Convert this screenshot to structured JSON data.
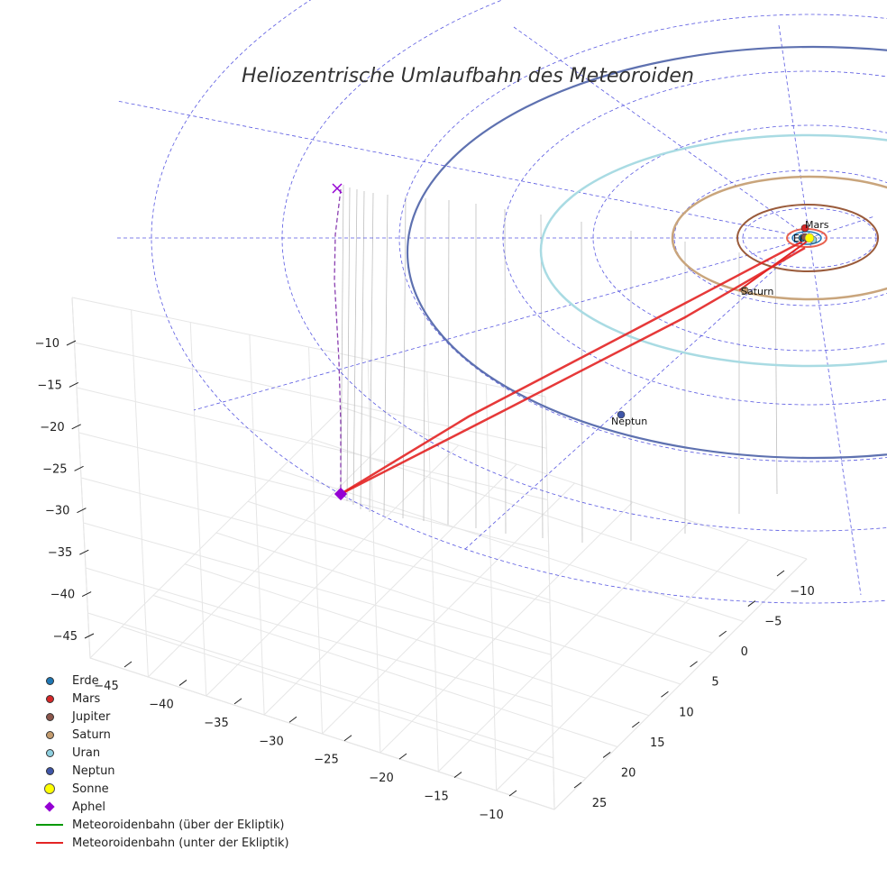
{
  "chart_data": {
    "type": "3d-orbit",
    "title": "Heliozentrische Umlaufbahn des Meteoroiden",
    "x_ticks": [
      "−45",
      "−40",
      "−35",
      "−30",
      "−25",
      "−20",
      "−15",
      "−10"
    ],
    "y_ticks": [
      "−10",
      "−5",
      "0",
      "5",
      "10",
      "15",
      "20",
      "25"
    ],
    "z_ticks": [
      "−10",
      "−15",
      "−20",
      "−25",
      "−30",
      "−35",
      "−40",
      "−45"
    ],
    "planets": [
      {
        "name": "Erde",
        "label": "Erde",
        "color": "#1f77b4",
        "orbit_color": "#1f77b4"
      },
      {
        "name": "Mars",
        "label": "Mars",
        "color": "#d62728",
        "orbit_color": "#e8614f"
      },
      {
        "name": "Jupiter",
        "label": "",
        "color": "#8c564b",
        "orbit_color": "#9a5b3b"
      },
      {
        "name": "Saturn",
        "label": "Saturn",
        "color": "#c49c6f",
        "orbit_color": "#c9a57c"
      },
      {
        "name": "Uran",
        "label": "",
        "color": "#8fd0e0",
        "orbit_color": "#a9dbe3"
      },
      {
        "name": "Neptun",
        "label": "Neptun",
        "color": "#3f56a8",
        "orbit_color": "#5e71b0"
      }
    ],
    "sun": {
      "name": "Sonne",
      "color": "#ffff00"
    },
    "aphel": {
      "name": "Aphel",
      "color": "#9400d3"
    },
    "orbit_above_color": "#009900",
    "orbit_below_color": "#e32424"
  },
  "legend": [
    {
      "label": "Erde",
      "kind": "dot",
      "color": "#1f77b4"
    },
    {
      "label": "Mars",
      "kind": "dot",
      "color": "#d62728"
    },
    {
      "label": "Jupiter",
      "kind": "dot",
      "color": "#8c564b"
    },
    {
      "label": "Saturn",
      "kind": "dot",
      "color": "#c49c6f"
    },
    {
      "label": "Uran",
      "kind": "dot",
      "color": "#8fd0e0"
    },
    {
      "label": "Neptun",
      "kind": "dot",
      "color": "#3f56a8"
    },
    {
      "label": "Sonne",
      "kind": "big",
      "color": "#ffff00"
    },
    {
      "label": "Aphel",
      "kind": "diamond",
      "color": "#9400d3"
    },
    {
      "label": "Meteoroidenbahn (über der Ekliptik)",
      "kind": "line",
      "color": "#009900"
    },
    {
      "label": "Meteoroidenbahn (unter der Ekliptik)",
      "kind": "line",
      "color": "#e32424"
    }
  ]
}
